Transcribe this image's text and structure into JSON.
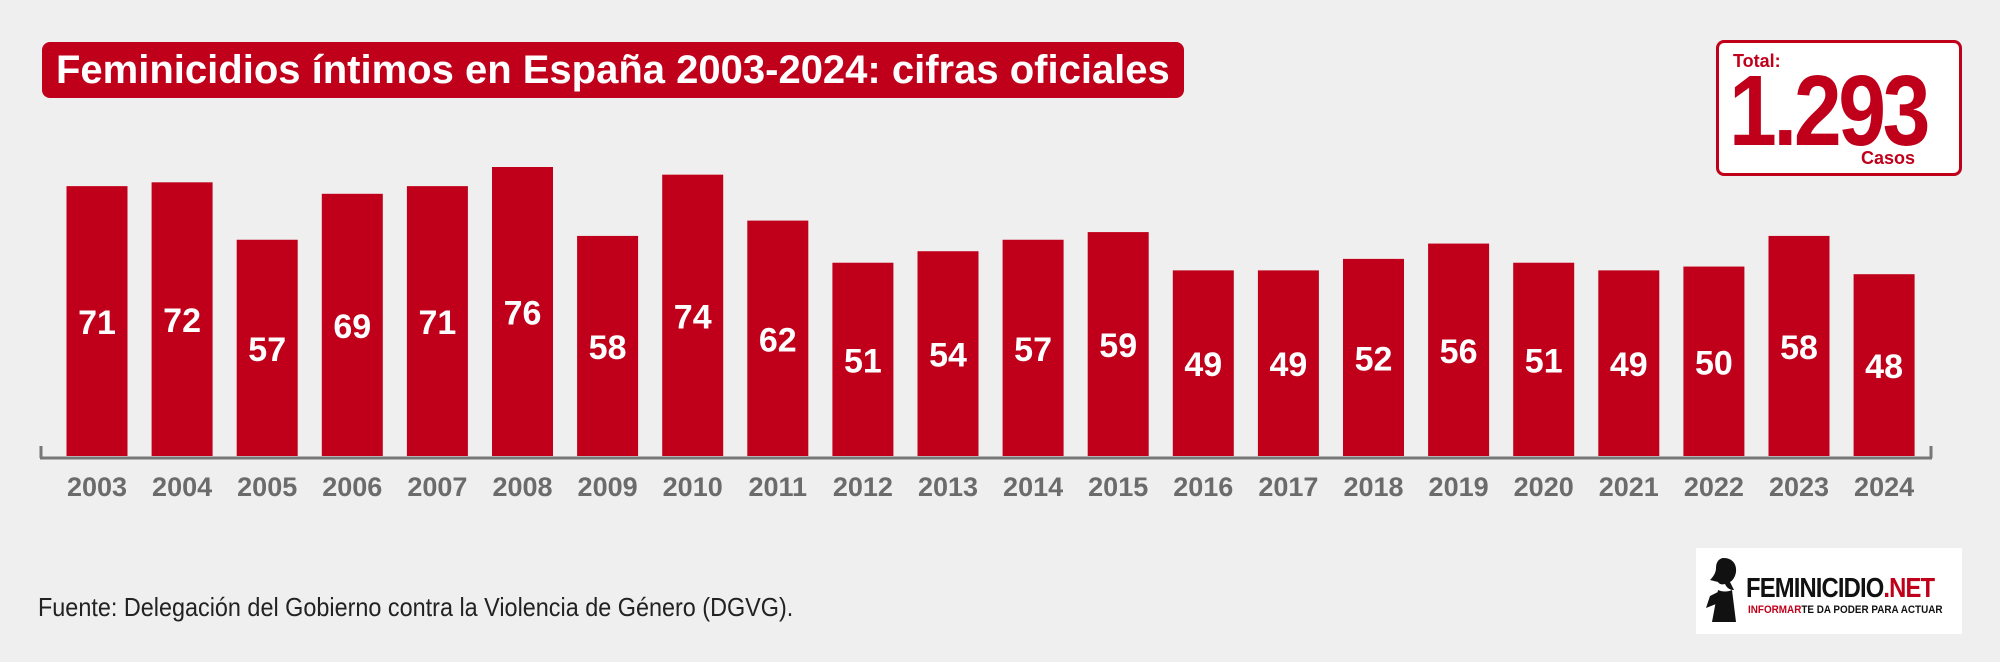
{
  "title": "Feminicidios íntimos en España 2003-2024: cifras oficiales",
  "total": {
    "label": "Total:",
    "value": "1.293",
    "unit": "Casos"
  },
  "source": "Fuente: Delegación del Gobierno contra la Violencia de Género (DGVG).",
  "logo": {
    "name_part1": "FEMINICIDIO",
    "name_part2": ".NET",
    "tagline_part1": "INFORMAR",
    "tagline_part2": "TE DA PODER PARA ACTUAR"
  },
  "colors": {
    "bar": "#c0001a",
    "bar_label": "#ffffff",
    "axis": "#777777",
    "tick_label": "#6b6b6b",
    "background": "#efefef"
  },
  "chart_data": {
    "type": "bar",
    "categories": [
      "2003",
      "2004",
      "2005",
      "2006",
      "2007",
      "2008",
      "2009",
      "2010",
      "2011",
      "2012",
      "2013",
      "2014",
      "2015",
      "2016",
      "2017",
      "2018",
      "2019",
      "2020",
      "2021",
      "2022",
      "2023",
      "2024"
    ],
    "values": [
      71,
      72,
      57,
      69,
      71,
      76,
      58,
      74,
      62,
      51,
      54,
      57,
      59,
      49,
      49,
      52,
      56,
      51,
      49,
      50,
      58,
      48
    ],
    "title": "Feminicidios íntimos en España 2003-2024: cifras oficiales",
    "xlabel": "",
    "ylabel": "",
    "ylim": [
      0,
      76
    ],
    "grid": false,
    "data_labels": "inside-bar"
  }
}
